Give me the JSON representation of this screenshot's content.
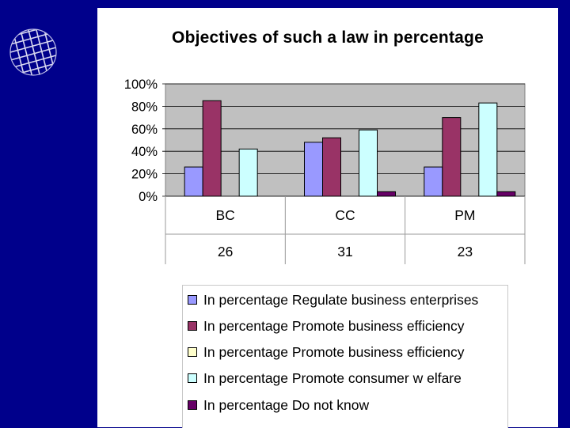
{
  "chart_data": {
    "type": "bar",
    "title": "Objectives of such a law in percentage",
    "categories": [
      "BC",
      "CC",
      "PM"
    ],
    "table_row": [
      "26",
      "31",
      "23"
    ],
    "ylim": [
      0,
      100
    ],
    "yticks": [
      "100%",
      "80%",
      "60%",
      "40%",
      "20%",
      "0%"
    ],
    "legend_position": "bottom",
    "series": [
      {
        "name": "In percentage Regulate business enterprises",
        "color": "#9999ff",
        "values": [
          26,
          48,
          26
        ]
      },
      {
        "name": "In percentage Promote business efficiency",
        "color": "#993366",
        "values": [
          85,
          52,
          70
        ]
      },
      {
        "name": "In percentage Promote business efficiency",
        "color": "#ffffcc",
        "values": [
          0,
          0,
          0
        ]
      },
      {
        "name": "In percentage Promote consumer w elfare",
        "color": "#ccffff",
        "values": [
          42,
          59,
          83
        ]
      },
      {
        "name": "In percentage Do not know",
        "color": "#660066",
        "values": [
          0,
          4,
          4
        ]
      }
    ]
  }
}
